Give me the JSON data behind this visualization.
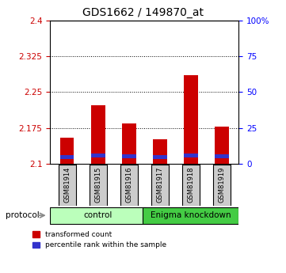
{
  "title": "GDS1662 / 149870_at",
  "samples": [
    "GSM81914",
    "GSM81915",
    "GSM81916",
    "GSM81917",
    "GSM81918",
    "GSM81919"
  ],
  "transformed_counts": [
    2.155,
    2.222,
    2.185,
    2.152,
    2.285,
    2.178
  ],
  "percentile_ranks_pct": [
    3.5,
    4.5,
    4.0,
    3.5,
    4.5,
    4.0
  ],
  "bar_base": 2.1,
  "ylim": [
    2.1,
    2.4
  ],
  "yticks": [
    2.1,
    2.175,
    2.25,
    2.325,
    2.4
  ],
  "ytick_labels": [
    "2.1",
    "2.175",
    "2.25",
    "2.325",
    "2.4"
  ],
  "right_yticks": [
    0,
    25,
    50,
    75,
    100
  ],
  "right_ytick_labels": [
    "0",
    "25",
    "50",
    "75",
    "100%"
  ],
  "hlines": [
    2.175,
    2.25,
    2.325
  ],
  "groups": [
    {
      "label": "control",
      "color": "#bbffbb",
      "start": 0,
      "end": 3
    },
    {
      "label": "Enigma knockdown",
      "color": "#44cc44",
      "start": 3,
      "end": 6
    }
  ],
  "red_color": "#cc0000",
  "blue_color": "#3333cc",
  "bar_width": 0.45,
  "gray_box_color": "#cccccc",
  "protocol_label": "protocol",
  "legend_red_label": "transformed count",
  "legend_blue_label": "percentile rank within the sample",
  "blue_bar_height": 0.008,
  "figsize": [
    3.61,
    3.45
  ],
  "dpi": 100
}
